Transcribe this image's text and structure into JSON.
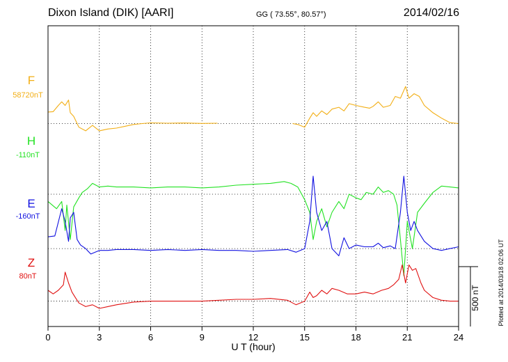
{
  "header": {
    "station": "Dixon Island (DIK)  [AARI]",
    "coords": "GG ( 73.55°,  80.57°)",
    "date": "2014/02/16"
  },
  "footer": {
    "plotted": "Plotted at 2014/03/18 02:06 UT"
  },
  "colors": {
    "F": "#f2ae14",
    "H": "#22e222",
    "E": "#1010e0",
    "Z": "#e01010"
  },
  "chart_data": {
    "type": "line",
    "title": "Dixon Island (DIK)  [AARI]",
    "xlabel": "U T (hour)",
    "ylabel": "",
    "xlim": [
      0,
      24
    ],
    "x_ticks": [
      0,
      3,
      6,
      9,
      12,
      15,
      18,
      21,
      24
    ],
    "x_tick_labels": [
      "0",
      "3",
      "6",
      "9",
      "12",
      "15",
      "18",
      "21",
      "24"
    ],
    "y_units": "nT",
    "vertical_extent_nT": [
      -1120,
      540
    ],
    "grid": true,
    "scale_bar": {
      "value": 500,
      "label": "500 nT"
    },
    "series": [
      {
        "name": "F",
        "label": "F",
        "baseline_label": "58720nT",
        "offset_nT": 0,
        "segments": [
          [
            [
              0,
              64
            ],
            [
              0.3,
              66
            ],
            [
              0.6,
              100
            ],
            [
              0.8,
              120
            ],
            [
              1.0,
              100
            ],
            [
              1.2,
              130
            ],
            [
              1.3,
              60
            ],
            [
              1.5,
              40
            ],
            [
              1.8,
              -20
            ],
            [
              2.2,
              -40
            ],
            [
              2.6,
              -10
            ],
            [
              3.0,
              -40
            ],
            [
              3.5,
              -30
            ],
            [
              4.0,
              -25
            ],
            [
              4.5,
              -15
            ],
            [
              5.0,
              -5
            ],
            [
              5.5,
              0
            ],
            [
              6.0,
              4
            ],
            [
              7.0,
              2
            ],
            [
              8.0,
              3
            ],
            [
              9.0,
              1
            ],
            [
              9.9,
              2
            ]
          ],
          [
            [
              14.3,
              0
            ],
            [
              14.6,
              -5
            ],
            [
              15.0,
              -20
            ],
            [
              15.3,
              30
            ],
            [
              15.5,
              60
            ],
            [
              15.7,
              40
            ],
            [
              16.0,
              70
            ],
            [
              16.3,
              50
            ],
            [
              16.6,
              80
            ],
            [
              17.0,
              90
            ],
            [
              17.3,
              70
            ],
            [
              17.6,
              110
            ],
            [
              18.0,
              100
            ],
            [
              18.5,
              90
            ],
            [
              18.8,
              85
            ],
            [
              19.0,
              95
            ],
            [
              19.3,
              120
            ],
            [
              19.6,
              90
            ],
            [
              20.0,
              100
            ],
            [
              20.3,
              150
            ],
            [
              20.6,
              140
            ],
            [
              20.9,
              205
            ],
            [
              21.1,
              140
            ],
            [
              21.4,
              165
            ],
            [
              21.7,
              150
            ],
            [
              22.0,
              100
            ],
            [
              22.5,
              60
            ],
            [
              23.0,
              30
            ],
            [
              23.5,
              5
            ],
            [
              24.0,
              0
            ]
          ]
        ]
      },
      {
        "name": "H",
        "label": "H",
        "baseline_label": "-110nT",
        "offset_nT": -390,
        "segments": [
          [
            [
              0,
              -40
            ],
            [
              0.5,
              -80
            ],
            [
              0.8,
              -40
            ],
            [
              1.0,
              -200
            ],
            [
              1.1,
              -60
            ],
            [
              1.3,
              -250
            ],
            [
              1.5,
              -70
            ],
            [
              1.8,
              -20
            ],
            [
              2.0,
              10
            ],
            [
              2.3,
              30
            ],
            [
              2.6,
              60
            ],
            [
              3.0,
              40
            ],
            [
              3.5,
              45
            ],
            [
              4.0,
              40
            ],
            [
              5.0,
              40
            ],
            [
              6.0,
              35
            ],
            [
              7.0,
              40
            ],
            [
              8.0,
              40
            ],
            [
              9.0,
              35
            ],
            [
              10.0,
              40
            ],
            [
              11.0,
              50
            ],
            [
              12.0,
              55
            ],
            [
              13.0,
              60
            ],
            [
              13.8,
              70
            ],
            [
              14.2,
              60
            ],
            [
              14.6,
              40
            ],
            [
              15.0,
              -30
            ],
            [
              15.3,
              -100
            ],
            [
              15.5,
              -250
            ],
            [
              15.7,
              -150
            ],
            [
              16.0,
              -80
            ],
            [
              16.3,
              -180
            ],
            [
              16.6,
              -100
            ],
            [
              17.0,
              -40
            ],
            [
              17.3,
              -80
            ],
            [
              17.6,
              0
            ],
            [
              18.0,
              -20
            ],
            [
              18.3,
              -30
            ],
            [
              18.6,
              10
            ],
            [
              19.0,
              0
            ],
            [
              19.3,
              40
            ],
            [
              19.6,
              10
            ],
            [
              19.9,
              20
            ],
            [
              20.2,
              0
            ],
            [
              20.4,
              -60
            ],
            [
              20.6,
              -250
            ],
            [
              20.8,
              -450
            ],
            [
              21.0,
              -150
            ],
            [
              21.3,
              -300
            ],
            [
              21.6,
              -100
            ],
            [
              22.0,
              -50
            ],
            [
              22.5,
              10
            ],
            [
              23.0,
              45
            ],
            [
              23.5,
              40
            ],
            [
              24.0,
              35
            ]
          ]
        ]
      },
      {
        "name": "E",
        "label": "E",
        "baseline_label": "-160nT",
        "offset_nT": -690,
        "segments": [
          [
            [
              0,
              65
            ],
            [
              0.4,
              70
            ],
            [
              0.8,
              220
            ],
            [
              1.0,
              150
            ],
            [
              1.2,
              40
            ],
            [
              1.3,
              170
            ],
            [
              1.5,
              200
            ],
            [
              1.7,
              50
            ],
            [
              1.9,
              20
            ],
            [
              2.2,
              0
            ],
            [
              2.5,
              -30
            ],
            [
              3.0,
              -10
            ],
            [
              3.5,
              -10
            ],
            [
              4.0,
              -5
            ],
            [
              5.0,
              -5
            ],
            [
              6.0,
              -10
            ],
            [
              7.0,
              -5
            ],
            [
              8.0,
              -10
            ],
            [
              9.0,
              -5
            ],
            [
              10.0,
              -10
            ],
            [
              11.0,
              -10
            ],
            [
              12.0,
              -15
            ],
            [
              13.0,
              -10
            ],
            [
              14.0,
              -5
            ],
            [
              14.5,
              -20
            ],
            [
              15.0,
              0
            ],
            [
              15.3,
              150
            ],
            [
              15.5,
              400
            ],
            [
              15.7,
              200
            ],
            [
              16.0,
              100
            ],
            [
              16.3,
              150
            ],
            [
              16.6,
              0
            ],
            [
              17.0,
              -40
            ],
            [
              17.3,
              60
            ],
            [
              17.6,
              0
            ],
            [
              18.0,
              20
            ],
            [
              18.5,
              10
            ],
            [
              19.0,
              10
            ],
            [
              19.3,
              30
            ],
            [
              19.6,
              5
            ],
            [
              20.0,
              15
            ],
            [
              20.3,
              0
            ],
            [
              20.6,
              200
            ],
            [
              20.8,
              400
            ],
            [
              21.0,
              200
            ],
            [
              21.2,
              100
            ],
            [
              21.4,
              150
            ],
            [
              21.6,
              100
            ],
            [
              22.0,
              40
            ],
            [
              22.5,
              0
            ],
            [
              23.0,
              -10
            ],
            [
              23.5,
              0
            ],
            [
              24.0,
              10
            ]
          ]
        ]
      },
      {
        "name": "Z",
        "label": "Z",
        "baseline_label": "80nT",
        "offset_nT": -980,
        "segments": [
          [
            [
              0,
              60
            ],
            [
              0.3,
              40
            ],
            [
              0.6,
              60
            ],
            [
              0.9,
              90
            ],
            [
              1.0,
              160
            ],
            [
              1.2,
              100
            ],
            [
              1.4,
              50
            ],
            [
              1.6,
              20
            ],
            [
              1.8,
              -10
            ],
            [
              2.2,
              -30
            ],
            [
              2.6,
              -20
            ],
            [
              3.0,
              -40
            ],
            [
              3.5,
              -30
            ],
            [
              4.0,
              -20
            ],
            [
              5.0,
              -5
            ],
            [
              6.0,
              0
            ],
            [
              7.0,
              0
            ],
            [
              8.0,
              0
            ],
            [
              9.0,
              0
            ],
            [
              10.0,
              5
            ],
            [
              11.0,
              10
            ],
            [
              12.0,
              10
            ],
            [
              13.0,
              15
            ],
            [
              14.0,
              5
            ],
            [
              14.5,
              -20
            ],
            [
              15.0,
              0
            ],
            [
              15.3,
              50
            ],
            [
              15.5,
              20
            ],
            [
              15.7,
              30
            ],
            [
              16.0,
              60
            ],
            [
              16.3,
              40
            ],
            [
              16.6,
              70
            ],
            [
              17.0,
              60
            ],
            [
              17.5,
              40
            ],
            [
              18.0,
              40
            ],
            [
              18.5,
              50
            ],
            [
              19.0,
              40
            ],
            [
              19.5,
              60
            ],
            [
              19.9,
              70
            ],
            [
              20.2,
              90
            ],
            [
              20.5,
              120
            ],
            [
              20.7,
              200
            ],
            [
              20.9,
              100
            ],
            [
              21.1,
              200
            ],
            [
              21.3,
              170
            ],
            [
              21.5,
              180
            ],
            [
              21.8,
              100
            ],
            [
              22.0,
              60
            ],
            [
              22.5,
              20
            ],
            [
              23.0,
              5
            ],
            [
              23.5,
              0
            ],
            [
              24.0,
              0
            ]
          ]
        ]
      }
    ]
  }
}
